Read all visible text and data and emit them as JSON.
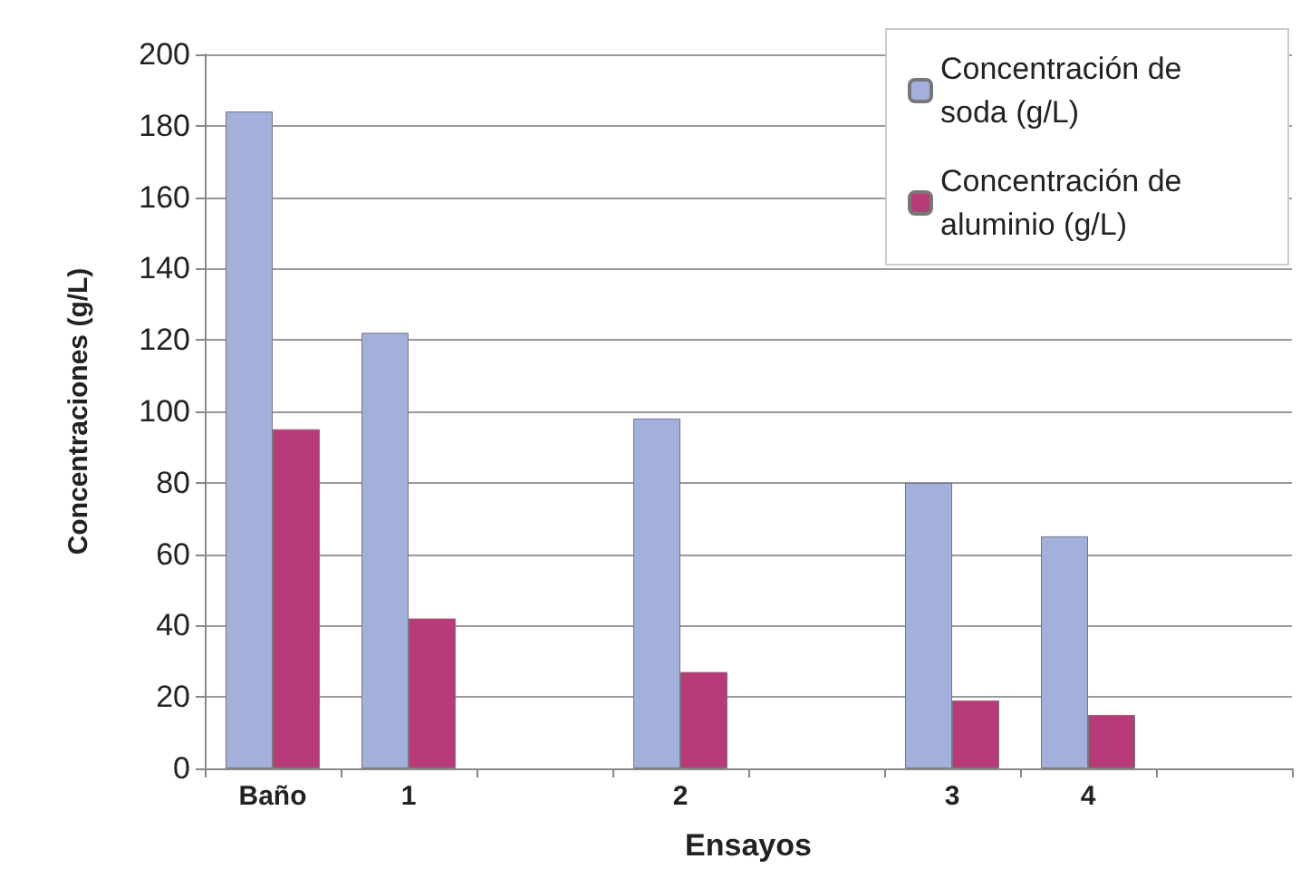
{
  "chart_data": {
    "type": "bar",
    "xlabel": "Ensayos",
    "ylabel": "Concentraciones (g/L)",
    "categories": [
      "Baño",
      "1",
      null,
      "2",
      null,
      "3",
      "4",
      null
    ],
    "series": [
      {
        "name": "Concentración de soda (g/L)",
        "color": "#a4b0dc",
        "values": [
          184,
          122,
          null,
          98,
          null,
          80,
          65,
          null
        ]
      },
      {
        "name": "Concentración de aluminio (g/L)",
        "color": "#b83a78",
        "values": [
          95,
          42,
          null,
          27,
          null,
          19,
          15,
          null
        ]
      }
    ],
    "ylim": [
      0,
      200
    ],
    "yticks": [
      0,
      20,
      40,
      60,
      80,
      100,
      120,
      140,
      160,
      180,
      200
    ],
    "grid": "y",
    "legend": "top right"
  }
}
